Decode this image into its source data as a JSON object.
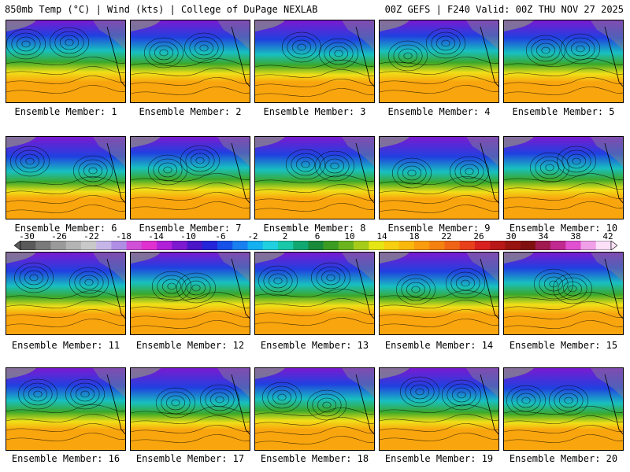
{
  "header": {
    "left": "850mb Temp (°C) | Wind (kts) | College of DuPage NEXLAB",
    "right": "00Z GEFS | F240 Valid: 00Z THU NOV 27 2025"
  },
  "members": [
    {
      "label": "Ensemble Member: 1",
      "id": 1
    },
    {
      "label": "Ensemble Member: 2",
      "id": 2
    },
    {
      "label": "Ensemble Member: 3",
      "id": 3
    },
    {
      "label": "Ensemble Member: 4",
      "id": 4
    },
    {
      "label": "Ensemble Member: 5",
      "id": 5
    },
    {
      "label": "Ensemble Member: 6",
      "id": 6
    },
    {
      "label": "Ensemble Member: 7",
      "id": 7
    },
    {
      "label": "Ensemble Member: 8",
      "id": 8
    },
    {
      "label": "Ensemble Member: 9",
      "id": 9
    },
    {
      "label": "Ensemble Member: 10",
      "id": 10
    },
    {
      "label": "Ensemble Member: 11",
      "id": 11
    },
    {
      "label": "Ensemble Member: 12",
      "id": 12
    },
    {
      "label": "Ensemble Member: 13",
      "id": 13
    },
    {
      "label": "Ensemble Member: 14",
      "id": 14
    },
    {
      "label": "Ensemble Member: 15",
      "id": 15
    },
    {
      "label": "Ensemble Member: 16",
      "id": 16
    },
    {
      "label": "Ensemble Member: 17",
      "id": 17
    },
    {
      "label": "Ensemble Member: 18",
      "id": 18
    },
    {
      "label": "Ensemble Member: 19",
      "id": 19
    },
    {
      "label": "Ensemble Member: 20",
      "id": 20
    }
  ],
  "colorbar": {
    "ticks": [
      "-30",
      "-26",
      "-22",
      "-18",
      "-14",
      "-10",
      "-6",
      "-2",
      "2",
      "6",
      "10",
      "14",
      "18",
      "22",
      "26",
      "30",
      "34",
      "38",
      "42"
    ],
    "colors": [
      "#5a5a5a",
      "#7a7a7a",
      "#9a9a9a",
      "#b4b4b4",
      "#c9c9c9",
      "#c6b6e8",
      "#b08ee6",
      "#d050d8",
      "#e030d0",
      "#b020d8",
      "#7d19cf",
      "#4a16c8",
      "#2424d8",
      "#1650e8",
      "#1a80f0",
      "#14b0f0",
      "#20d0e0",
      "#18c8a8",
      "#10a870",
      "#188a3a",
      "#3c9c22",
      "#6cb41e",
      "#a6cc1a",
      "#e6e614",
      "#f6d010",
      "#fab80c",
      "#f99c0e",
      "#f58210",
      "#f06418",
      "#e8401c",
      "#d82020",
      "#b81818",
      "#981410",
      "#801010",
      "#a01a50",
      "#c02a90",
      "#e050d0",
      "#f0a0e8",
      "#fce0f8"
    ]
  },
  "field_colors": {
    "cold": "#7a1ad0",
    "coolblue": "#2040e0",
    "teal": "#18c0c0",
    "green": "#3ca82a",
    "yellow": "#f0e018",
    "orange": "#f9a50e",
    "land": "#8a8a8a"
  }
}
